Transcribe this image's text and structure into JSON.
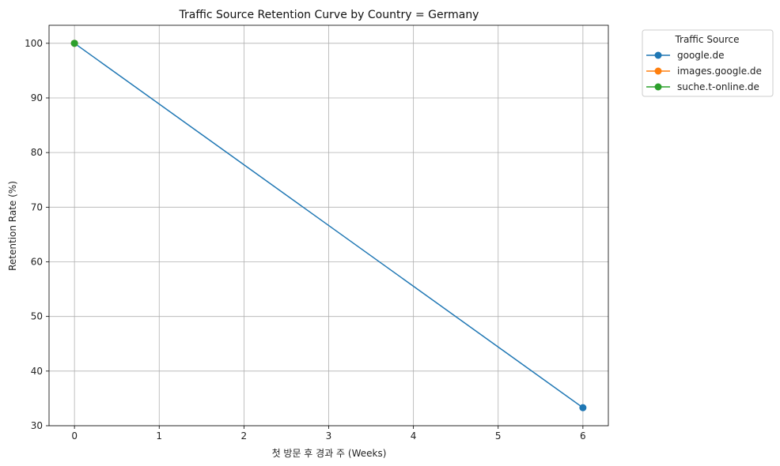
{
  "chart_data": {
    "type": "line",
    "title": "Traffic Source Retention Curve by Country = Germany",
    "xlabel": "첫 방문 후 경과 주 (Weeks)",
    "ylabel": "Retention Rate (%)",
    "xlim": [
      -0.3,
      6.3
    ],
    "ylim": [
      30,
      103.3
    ],
    "xticks": [
      0,
      1,
      2,
      3,
      4,
      5,
      6
    ],
    "yticks": [
      30,
      40,
      50,
      60,
      70,
      80,
      90,
      100
    ],
    "grid": true,
    "legend": {
      "title": "Traffic Source",
      "placement": "outside-top-right"
    },
    "series": [
      {
        "name": "google.de",
        "color": "#1f77b4",
        "x": [
          0,
          6
        ],
        "y": [
          100,
          33.3
        ]
      },
      {
        "name": "images.google.de",
        "color": "#ff7f0e",
        "x": [
          0
        ],
        "y": [
          100
        ]
      },
      {
        "name": "suche.t-online.de",
        "color": "#2ca02c",
        "x": [
          0
        ],
        "y": [
          100
        ]
      }
    ]
  }
}
